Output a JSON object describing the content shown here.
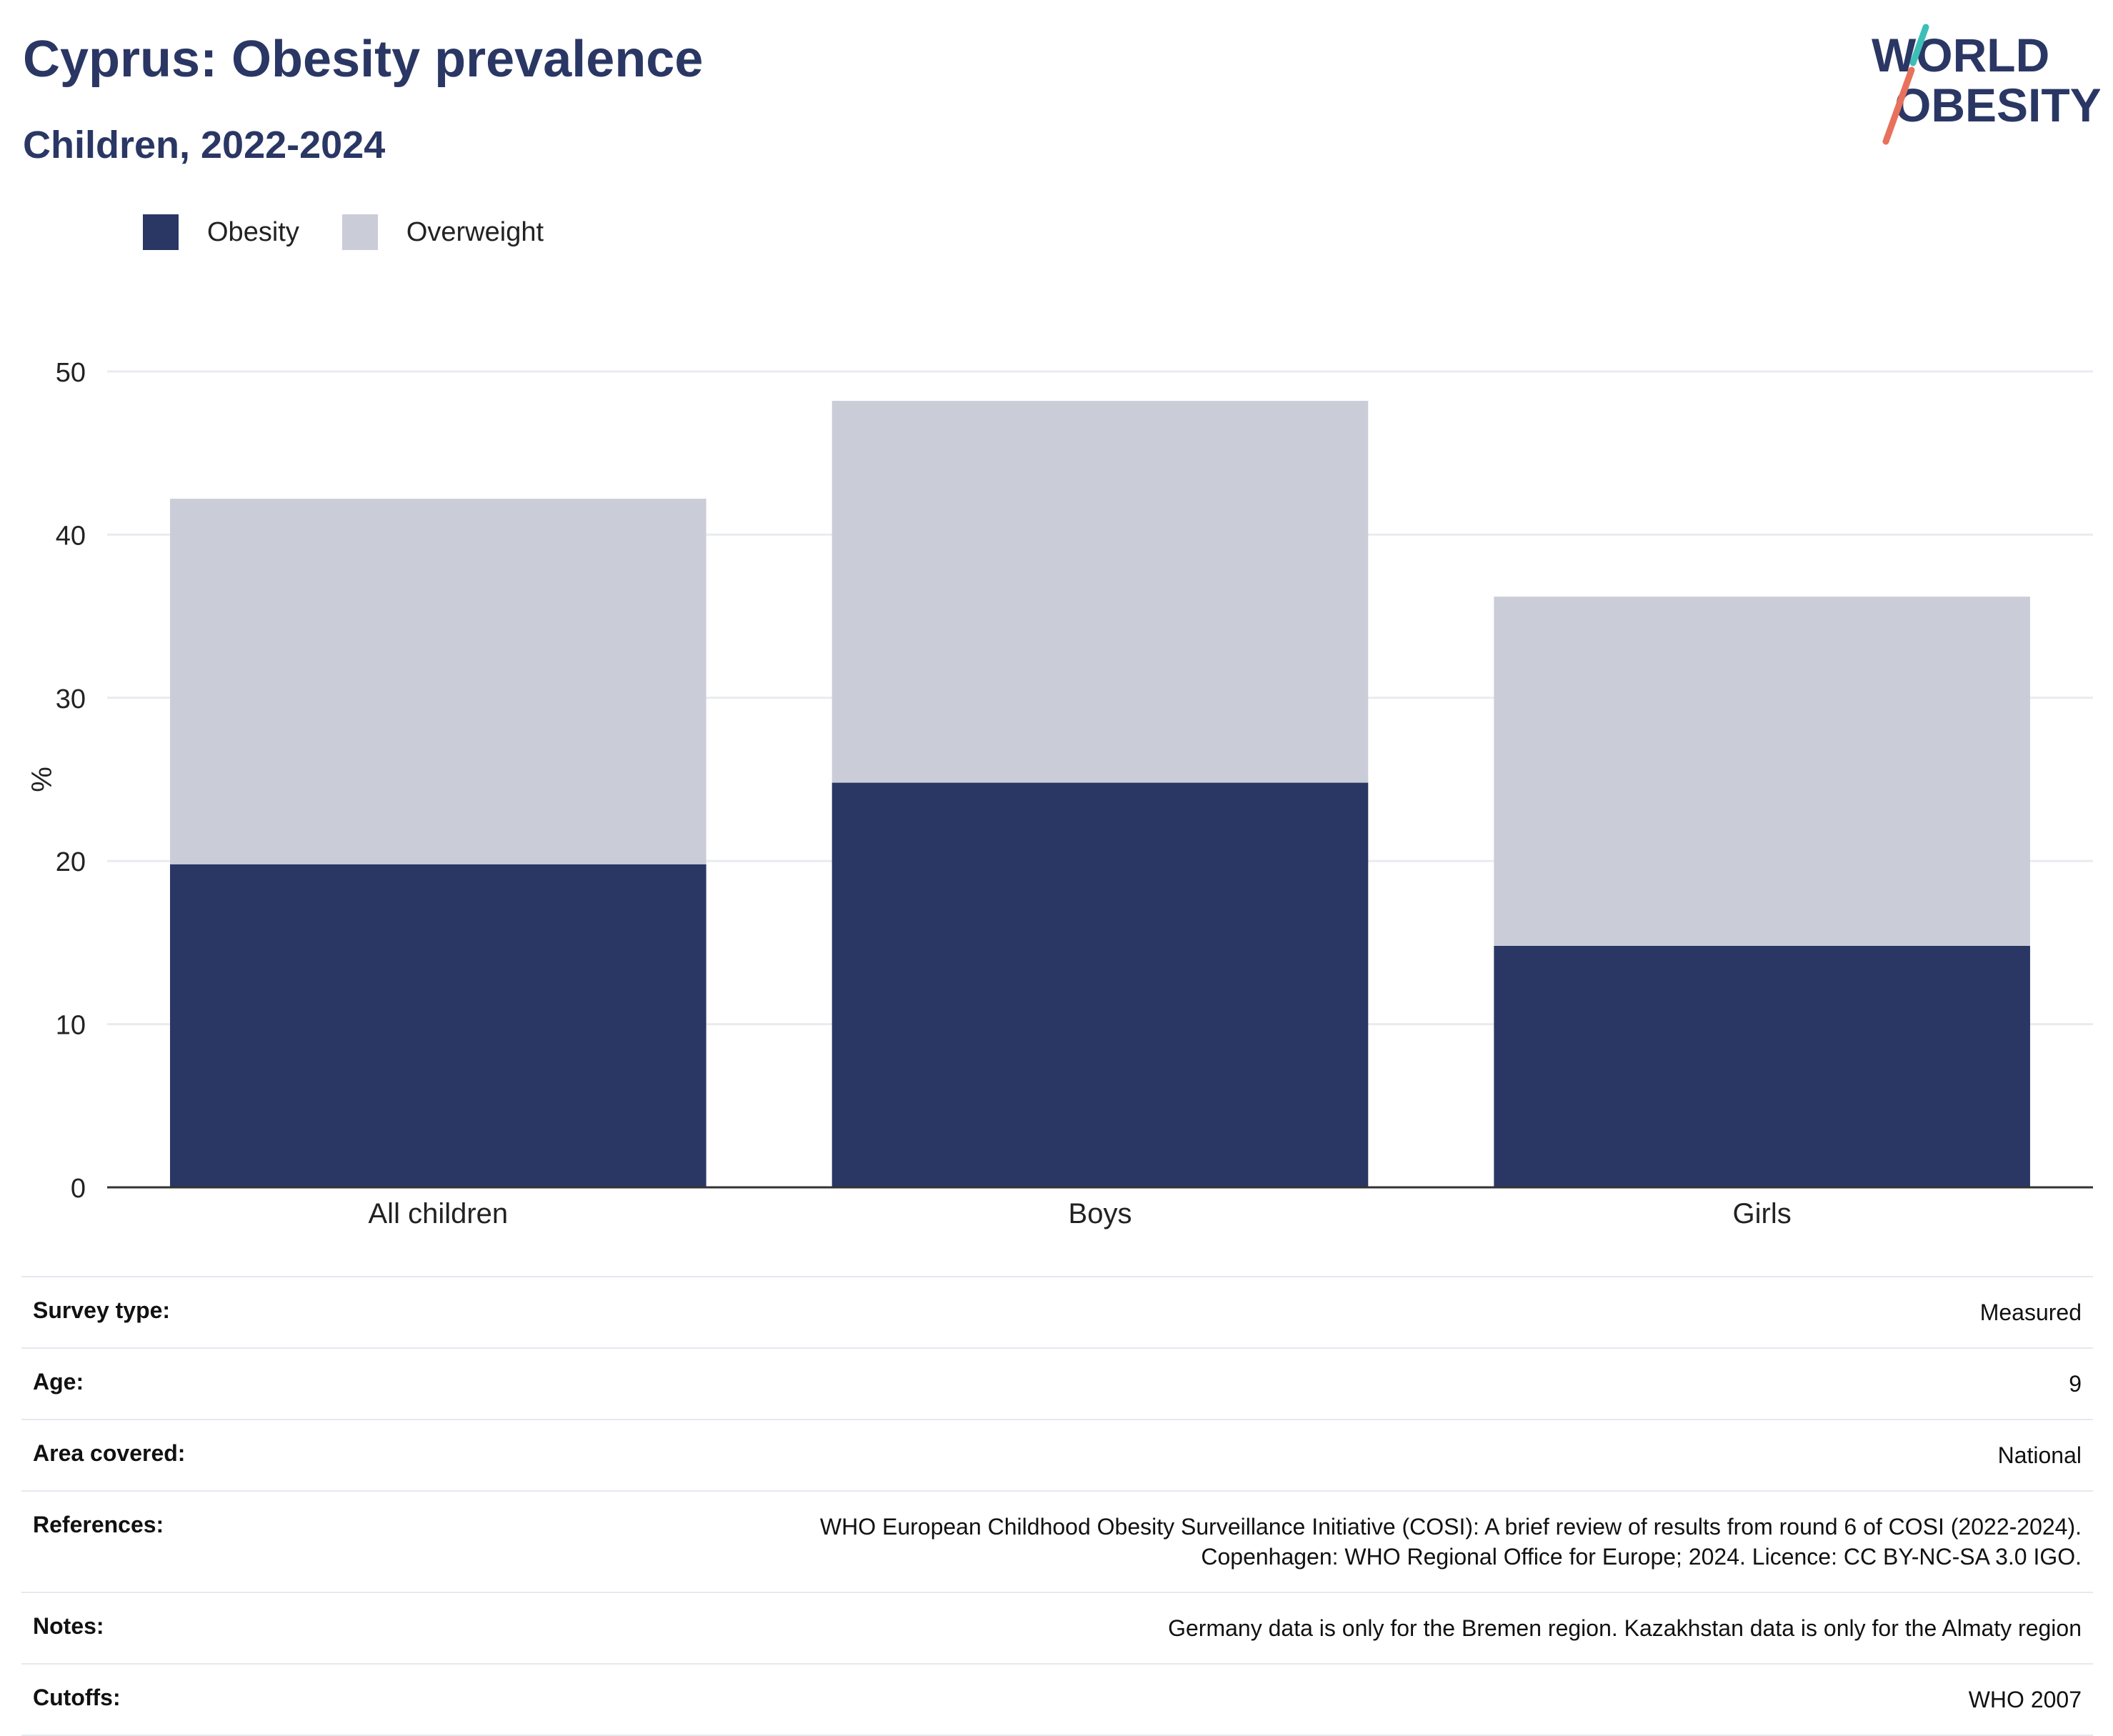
{
  "header": {
    "title": "Cyprus: Obesity prevalence",
    "subtitle": "Children, 2022-2024"
  },
  "logo": {
    "line1": "WORLD",
    "line2": "OBESITY"
  },
  "colors": {
    "obesity": "#2a3764",
    "overweight": "#cacdd8",
    "text": "#2a3764",
    "grid": "#e9ebf0"
  },
  "chart_data": {
    "type": "bar",
    "stacked": true,
    "categories": [
      "All children",
      "Boys",
      "Girls"
    ],
    "series": [
      {
        "name": "Obesity",
        "values": [
          19.8,
          24.8,
          14.8
        ]
      },
      {
        "name": "Overweight",
        "values": [
          22.4,
          23.4,
          21.4
        ]
      }
    ],
    "ylabel": "%",
    "ylim": [
      0,
      50
    ],
    "yticks": [
      0,
      10,
      20,
      30,
      40,
      50
    ],
    "legend": "top-left",
    "grid": true
  },
  "meta": [
    {
      "key": "Survey type:",
      "value": [
        "Measured"
      ]
    },
    {
      "key": "Age:",
      "value": [
        "9"
      ]
    },
    {
      "key": "Area covered:",
      "value": [
        "National"
      ]
    },
    {
      "key": "References:",
      "value": [
        "WHO European Childhood Obesity Surveillance Initiative (COSI): A brief review of results from round 6 of COSI (2022-2024).",
        "Copenhagen: WHO Regional Office for Europe; 2024. Licence: CC BY-NC-SA 3.0 IGO."
      ]
    },
    {
      "key": "Notes:",
      "value": [
        "Germany data is only for the Bremen region. Kazakhstan data is only for the Almaty region"
      ]
    },
    {
      "key": "Cutoffs:",
      "value": [
        "WHO 2007"
      ]
    }
  ]
}
